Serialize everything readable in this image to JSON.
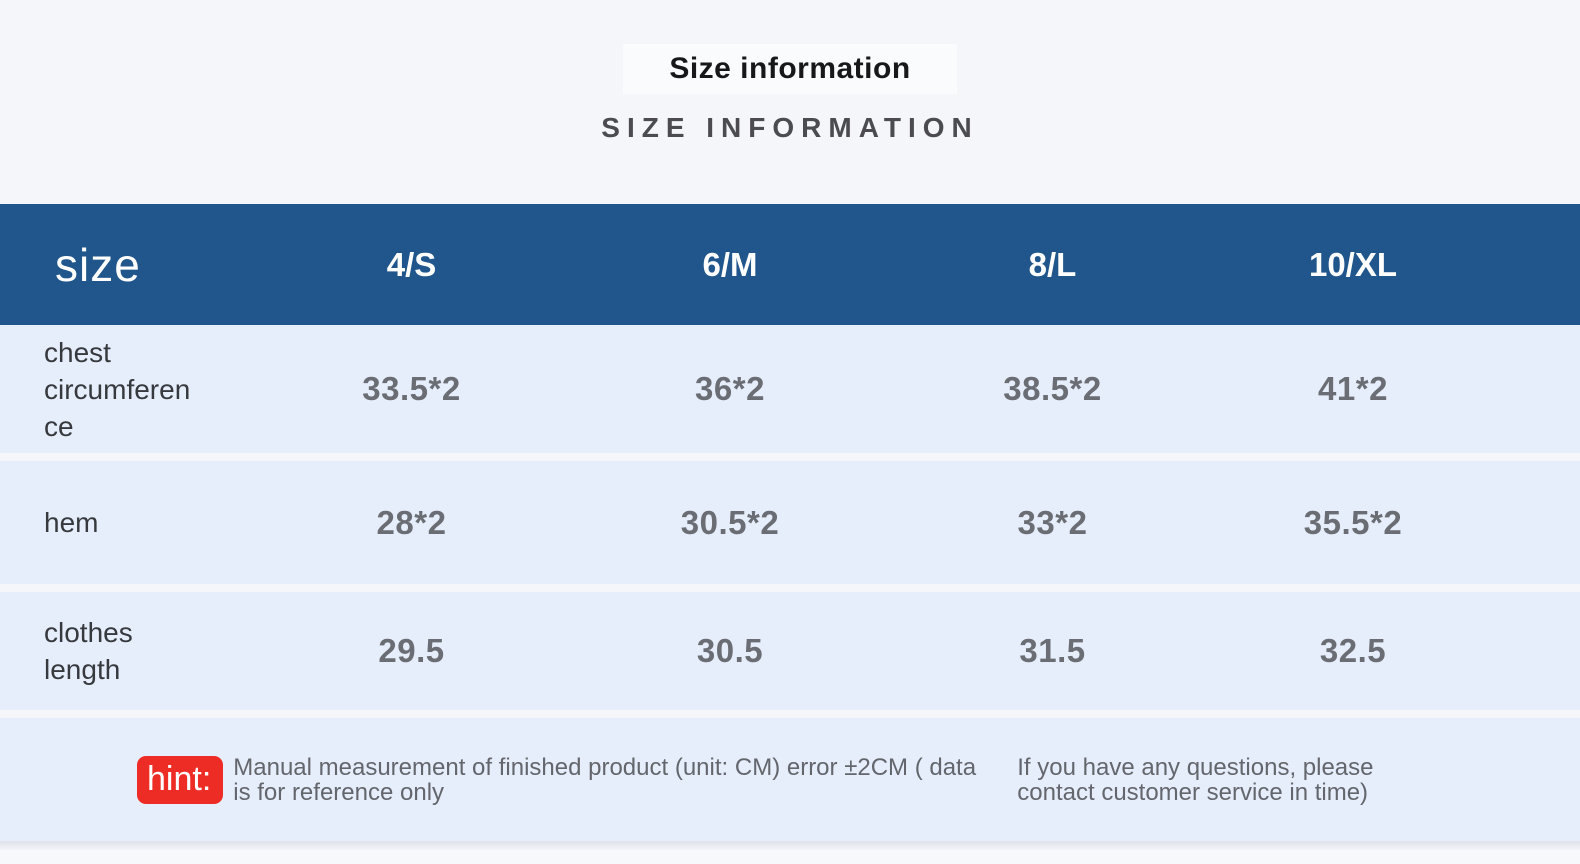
{
  "chart_data": {
    "type": "table",
    "title": "Size information",
    "subtitle": "SIZE INFORMATION",
    "corner_label": "size",
    "columns": [
      "4/S",
      "6/M",
      "8/L",
      "10/XL"
    ],
    "rows": [
      {
        "label": "chest circumference",
        "values": [
          "33.5*2",
          "36*2",
          "38.5*2",
          "41*2"
        ]
      },
      {
        "label": "hem",
        "values": [
          "28*2",
          "30.5*2",
          "33*2",
          "35.5*2"
        ]
      },
      {
        "label": "clothes length",
        "values": [
          "29.5",
          "30.5",
          "31.5",
          "32.5"
        ]
      }
    ],
    "unit": "CM",
    "layout": {
      "header_position": "top",
      "grid": "row-separated"
    }
  },
  "hint": {
    "badge": "hint:",
    "text_left": "Manual measurement of finished product (unit: CM) error ±2CM ( data is for reference only",
    "text_right": "If you have any questions, please contact customer service in time)"
  },
  "colors": {
    "header_bg": "#20568b",
    "header_text": "#ffffff",
    "row_bg": "#e7eefb",
    "page_bg": "#f4f6fa",
    "badge_bg": "#ee2c26",
    "value_text": "#6a6e74",
    "label_text": "#36393e",
    "subtitle_text": "#4c4c50"
  }
}
